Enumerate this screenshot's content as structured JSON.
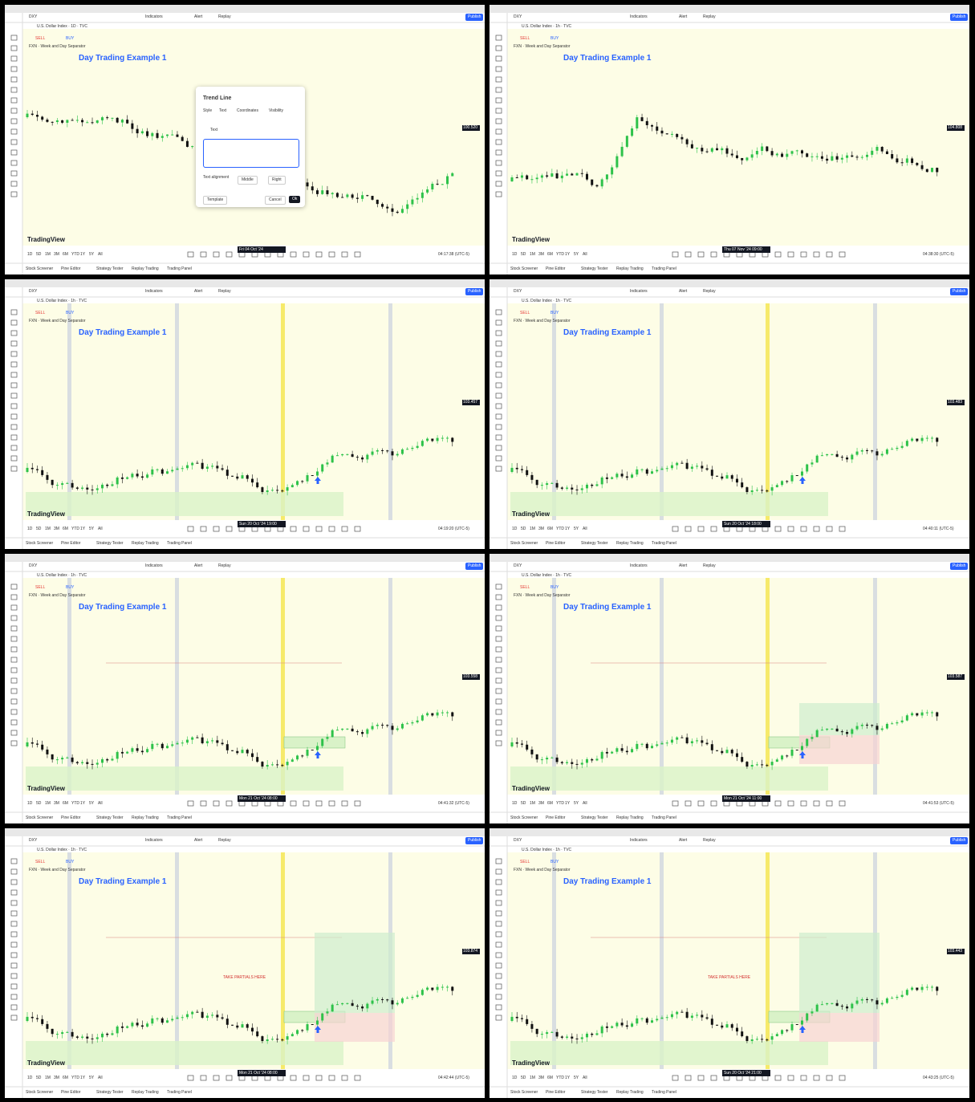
{
  "common": {
    "symbol": "DXY",
    "indicators": "Indicators",
    "alert": "Alert",
    "replay": "Replay",
    "publish": "Publish",
    "watermark": "TradingView",
    "indicator_label": "FXN · Week and Day Separator",
    "sell": "SELL",
    "buy": "BUY",
    "ranges": [
      "1D",
      "5D",
      "1M",
      "3M",
      "6M",
      "YTD",
      "1Y",
      "5Y",
      "All"
    ],
    "tabs": [
      "Stock Screener",
      "Pine Editor",
      "Strategy Tester",
      "Replay Trading",
      "Trading Panel"
    ]
  },
  "panels": [
    {
      "instrument": "U.S. Dollar Index · 1D · TVC",
      "title": "Day Trading Example 1",
      "date_label": "Fri 04 Oct '24",
      "price_label": "100.520",
      "clock": "04:17:38 (UTC-5)"
    },
    {
      "instrument": "U.S. Dollar Index · 1h · TVC",
      "title": "Day Trading Example 1",
      "date_label": "Thu 07 Nov '24 09:00",
      "price_label": "104.808",
      "clock": "04:38:30 (UTC-5)"
    },
    {
      "instrument": "U.S. Dollar Index · 1h · TVC",
      "title": "Day Trading Example 1",
      "date_label": "Sun 20 Oct '24 19:00",
      "price_label": "103.457",
      "clock": "04:19:20 (UTC-5)"
    },
    {
      "instrument": "U.S. Dollar Index · 1h · TVC",
      "title": "Day Trading Example 1",
      "date_label": "Sun 20 Oct '24 18:00",
      "price_label": "103.483",
      "clock": "04:40:11 (UTC-5)"
    },
    {
      "instrument": "U.S. Dollar Index · 1h · TVC",
      "title": "Day Trading Example 1",
      "date_label": "Mon 21 Oct '24 08:00",
      "price_label": "103.558",
      "clock": "04:41:32 (UTC-5)"
    },
    {
      "instrument": "U.S. Dollar Index · 1h · TVC",
      "title": "Day Trading Example 1",
      "date_label": "Mon 21 Oct '24 11:00",
      "price_label": "103.587",
      "clock": "04:41:53 (UTC-5)"
    },
    {
      "instrument": "U.S. Dollar Index · 1h · TVC",
      "title": "Day Trading Example 1",
      "date_label": "Mon 21 Oct '24 08:00",
      "price_label": "103.874",
      "clock": "04:42:44 (UTC-5)",
      "annotation": "TAKE PARTIALS HERE"
    },
    {
      "instrument": "U.S. Dollar Index · 1h · TVC",
      "title": "Day Trading Example 1",
      "date_label": "Sun 20 Oct '24 21:00",
      "price_label": "103.443",
      "clock": "04:43:25 (UTC-5)",
      "annotation": "TAKE PARTIALS HERE"
    }
  ],
  "dialog": {
    "title": "Trend Line",
    "tabs": [
      "Style",
      "Text",
      "Coordinates",
      "Visibility"
    ],
    "text_checkbox": "Text",
    "alignment_label": "Text alignment",
    "align_v": "Middle",
    "align_h": "Right",
    "template": "Template",
    "cancel": "Cancel",
    "ok": "Ok"
  }
}
